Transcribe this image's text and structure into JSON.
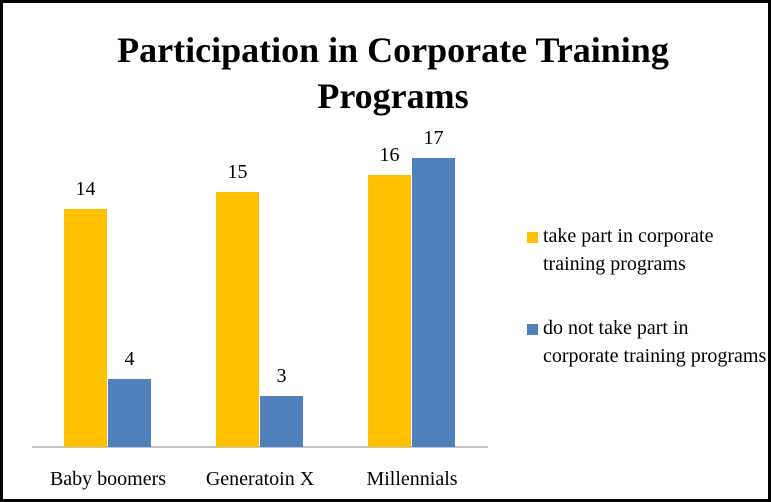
{
  "chart_data": {
    "type": "bar",
    "title": "Participation in Corporate Training Programs",
    "categories": [
      "Baby boomers",
      "Generatoin X",
      "Millennials"
    ],
    "series": [
      {
        "name": "take part in corporate training programs",
        "color": "#FFC000",
        "values": [
          14,
          15,
          16
        ]
      },
      {
        "name": "do not take part in corporate training programs",
        "color": "#4F81BD",
        "values": [
          4,
          3,
          17
        ]
      }
    ],
    "legend": "right"
  }
}
